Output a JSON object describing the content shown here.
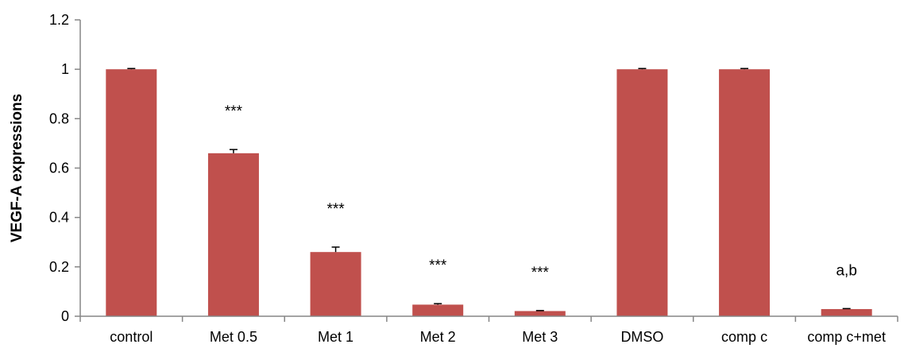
{
  "chart_data": {
    "type": "bar",
    "title": "",
    "xlabel": "",
    "ylabel": "VEGF-A expressions",
    "ylim": [
      0,
      1.2
    ],
    "yticks": [
      "0",
      "0.2",
      "0.4",
      "0.6",
      "0.8",
      "1",
      "1.2"
    ],
    "grid": false,
    "legend": "none",
    "bar_color": "#c0504d",
    "categories": [
      "control",
      "Met 0.5",
      "Met 1",
      "Met 2",
      "Met 3",
      "DMSO",
      "comp c",
      "comp c+met"
    ],
    "values": [
      1.0,
      0.66,
      0.26,
      0.047,
      0.021,
      1.0,
      1.0,
      0.029
    ],
    "errors": [
      0.003,
      0.015,
      0.02,
      0.004,
      0.002,
      0.003,
      0.003,
      0.002
    ],
    "annotations": [
      "",
      "***",
      "***",
      "***",
      "***",
      "",
      "",
      "a,b"
    ]
  }
}
